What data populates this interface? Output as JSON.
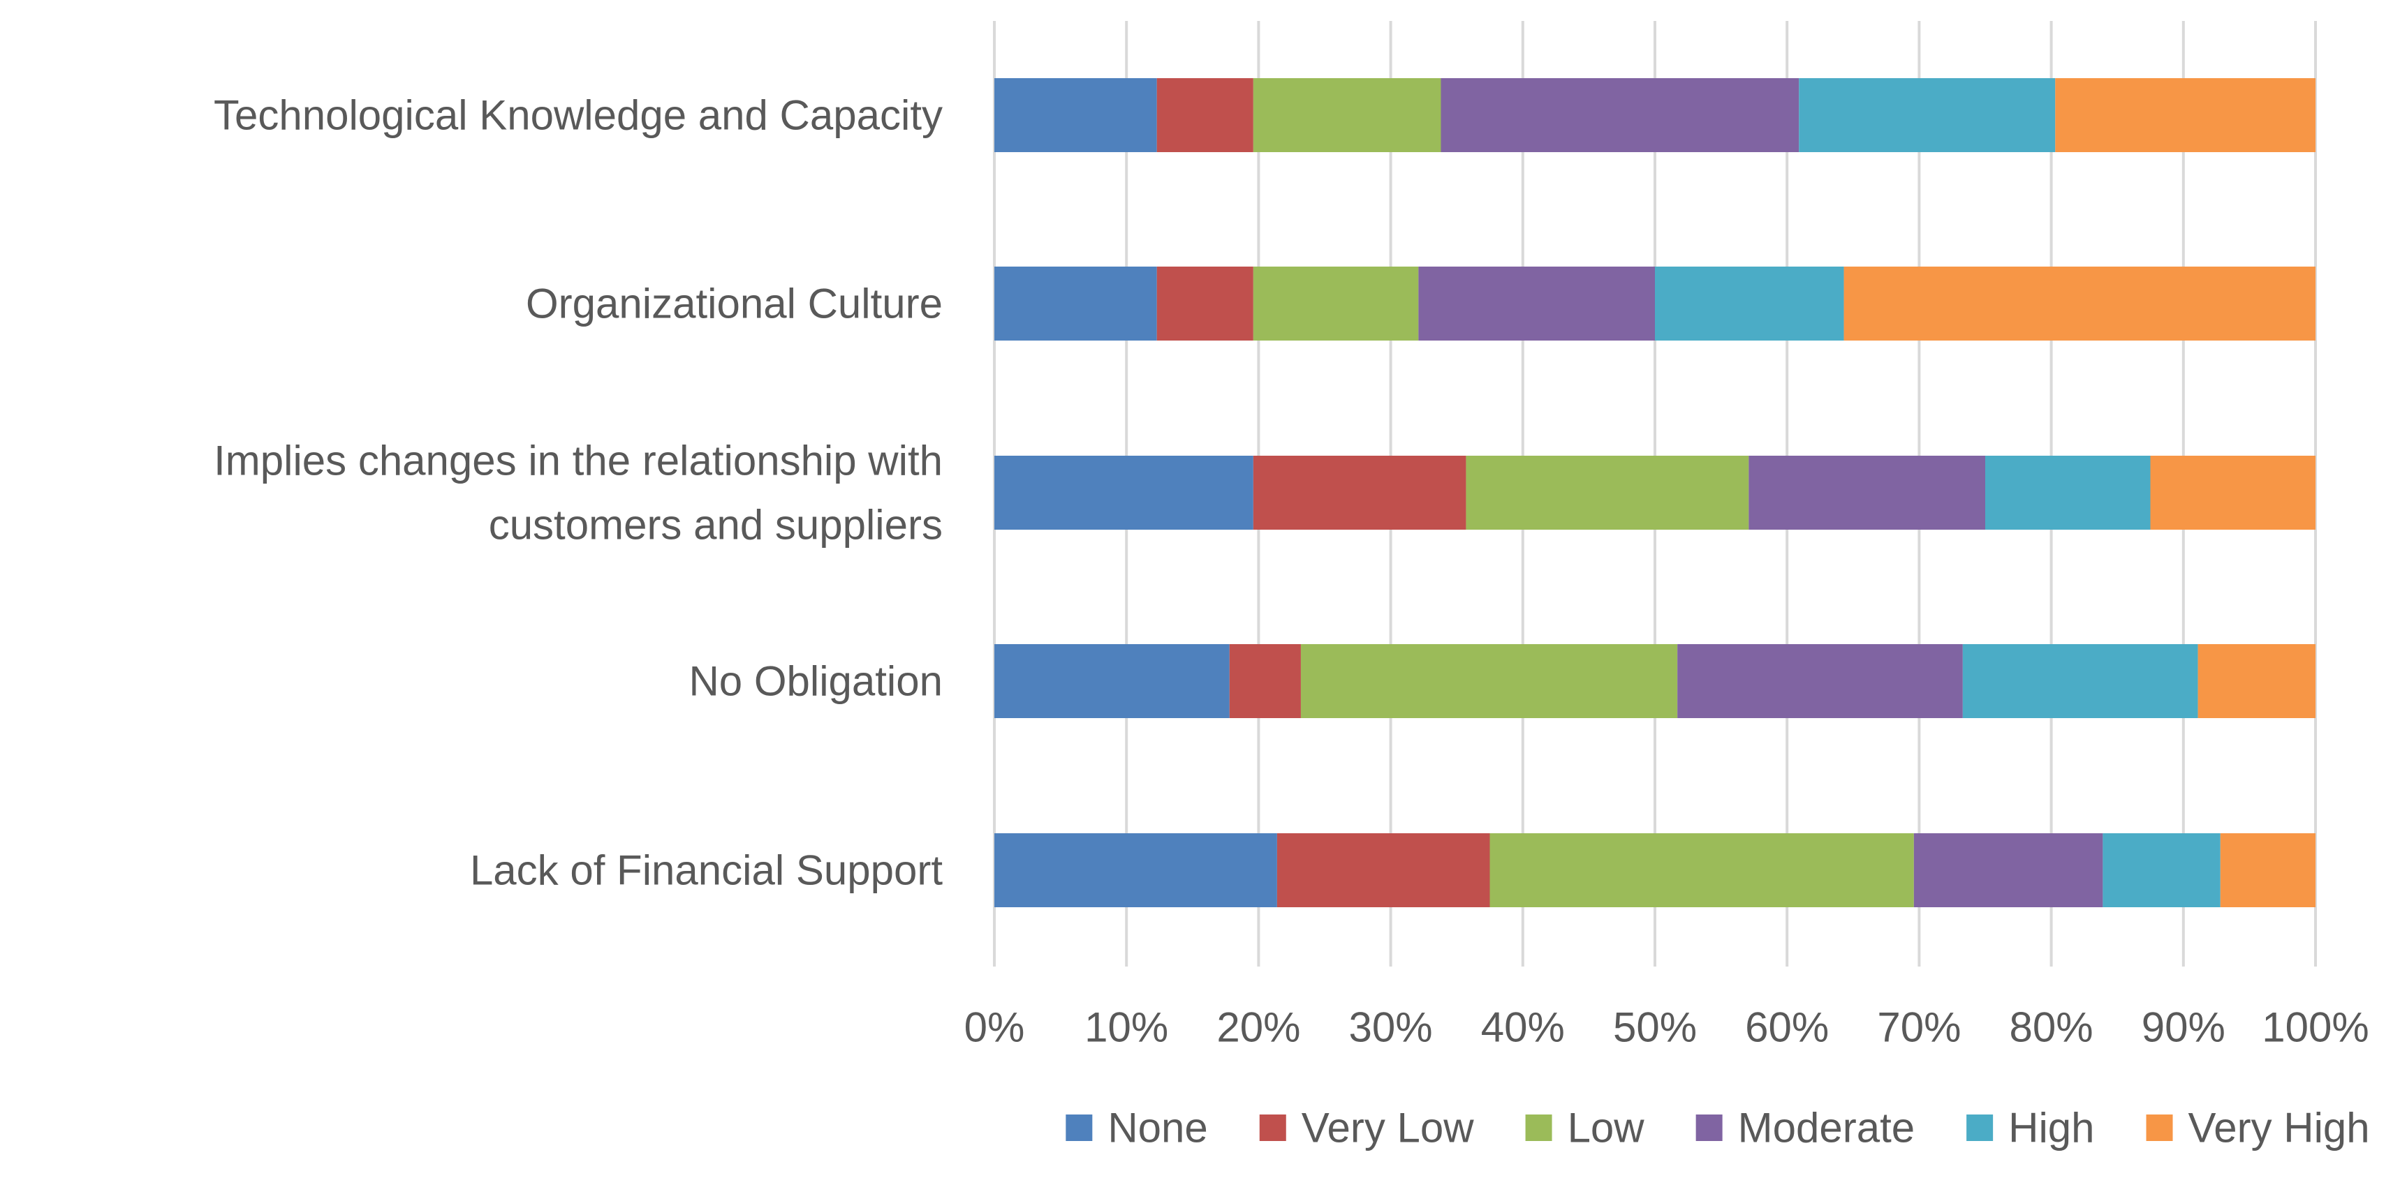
{
  "chart_data": {
    "type": "bar",
    "orientation": "horizontal",
    "stacked": true,
    "percent_stacked": true,
    "title": "",
    "xlabel": "",
    "ylabel": "",
    "xlim": [
      0,
      100
    ],
    "grid": true,
    "legend_position": "bottom",
    "categories": [
      "Technological Knowledge and Capacity",
      "Organizational Culture",
      "Implies changes in the relationship with customers and suppliers",
      "No Obligation",
      "Lack of Financial Support"
    ],
    "category_lines": [
      [
        "Technological Knowledge and Capacity"
      ],
      [
        "Organizational Culture"
      ],
      [
        "Implies changes in the relationship with",
        "customers and suppliers"
      ],
      [
        "No Obligation"
      ],
      [
        "Lack of Financial Support"
      ]
    ],
    "x_ticks": [
      "0%",
      "10%",
      "20%",
      "30%",
      "40%",
      "50%",
      "60%",
      "70%",
      "80%",
      "90%",
      "100%"
    ],
    "series": [
      {
        "name": "None",
        "color": "#4F81BD",
        "values": [
          12.3,
          12.3,
          19.6,
          17.8,
          21.4
        ]
      },
      {
        "name": "Very Low",
        "color": "#C0504D",
        "values": [
          7.3,
          7.3,
          16.1,
          5.4,
          16.1
        ]
      },
      {
        "name": "Low",
        "color": "#9BBB59",
        "values": [
          14.2,
          12.5,
          21.4,
          28.5,
          32.1
        ]
      },
      {
        "name": "Moderate",
        "color": "#8064A2",
        "values": [
          27.1,
          17.9,
          17.9,
          21.6,
          14.3
        ]
      },
      {
        "name": "High",
        "color": "#4BACC6",
        "values": [
          19.4,
          14.3,
          12.5,
          17.8,
          8.9
        ]
      },
      {
        "name": "Very High",
        "color": "#F79646",
        "values": [
          19.7,
          35.7,
          12.5,
          8.9,
          7.2
        ]
      }
    ]
  }
}
